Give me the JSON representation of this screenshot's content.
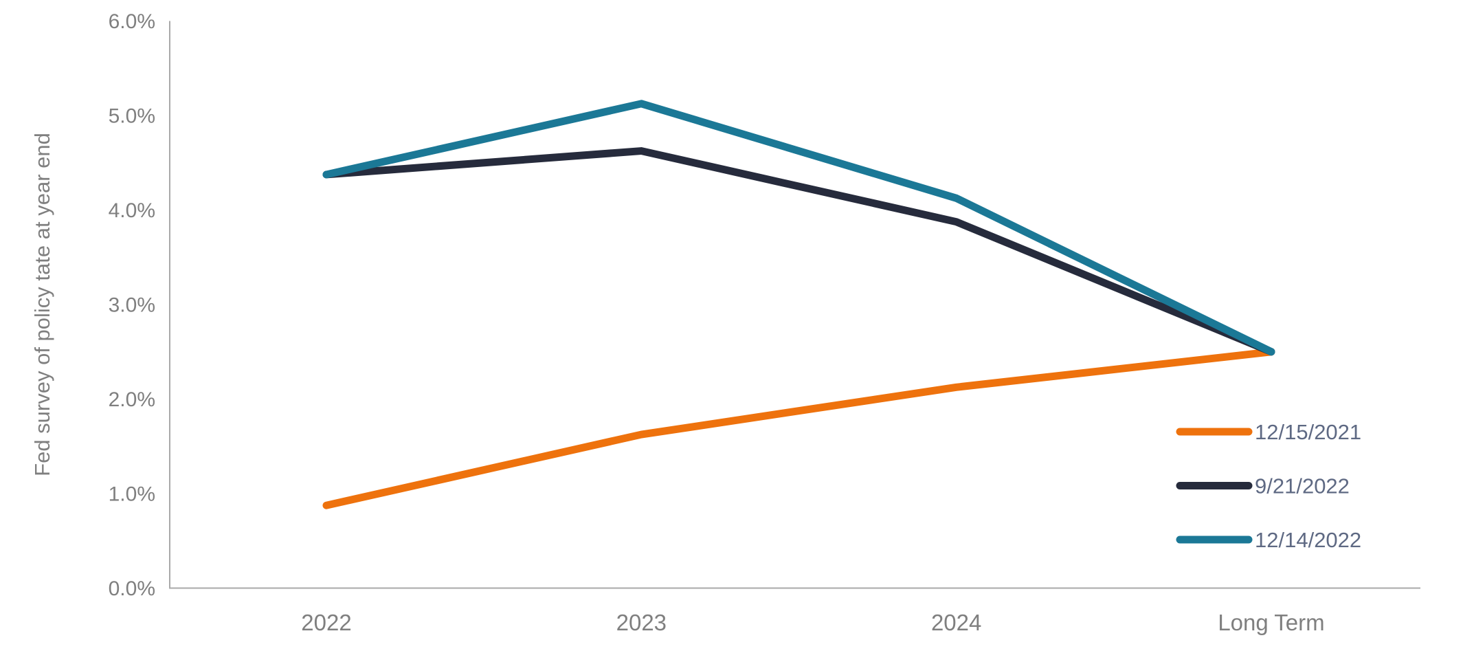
{
  "chart_data": {
    "type": "line",
    "title": "",
    "xlabel": "",
    "ylabel": "Fed survey of policy tate at year end",
    "categories": [
      "2022",
      "2023",
      "2024",
      "Long Term"
    ],
    "series": [
      {
        "name": "12/15/2021",
        "color": "#ee720d",
        "values": [
          0.875,
          1.625,
          2.125,
          2.5
        ]
      },
      {
        "name": "9/21/2022",
        "color": "#262b3c",
        "values": [
          4.375,
          4.625,
          3.875,
          2.5
        ]
      },
      {
        "name": "12/14/2022",
        "color": "#1b7896",
        "values": [
          4.375,
          5.125,
          4.125,
          2.5
        ]
      }
    ],
    "y_ticks": [
      "0.0%",
      "1.0%",
      "2.0%",
      "3.0%",
      "4.0%",
      "5.0%",
      "6.0%"
    ],
    "y_tick_values": [
      0,
      1,
      2,
      3,
      4,
      5,
      6
    ],
    "ylim": [
      0,
      6
    ],
    "grid": false,
    "legend_position": "inside-lower-right",
    "appearance": {
      "axis_line_color": "#a9a9a9",
      "tick_label_color": "#7f7f7f",
      "legend_text_color": "#5e6983",
      "background_color": "#ffffff",
      "line_width": 11
    }
  }
}
